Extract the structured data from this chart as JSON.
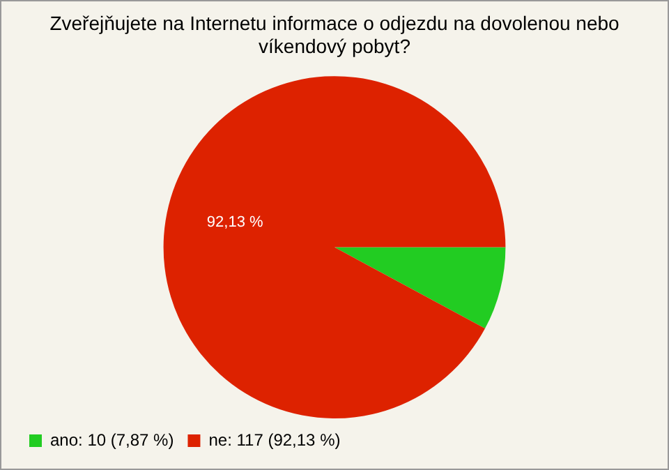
{
  "chart_data": {
    "type": "pie",
    "title": "Zveřejňujete na Internetu informace o odjezdu na dovolenou nebo víkendový pobyt?",
    "categories": [
      "ano: 10 (7,87 %)",
      "ne: 117 (92,13 %)"
    ],
    "values": [
      7.87,
      92.13
    ],
    "colors": [
      "#22cc22",
      "#dd2200"
    ],
    "value_labels": [
      null,
      "92,13 %"
    ],
    "legend": "bottom left"
  }
}
